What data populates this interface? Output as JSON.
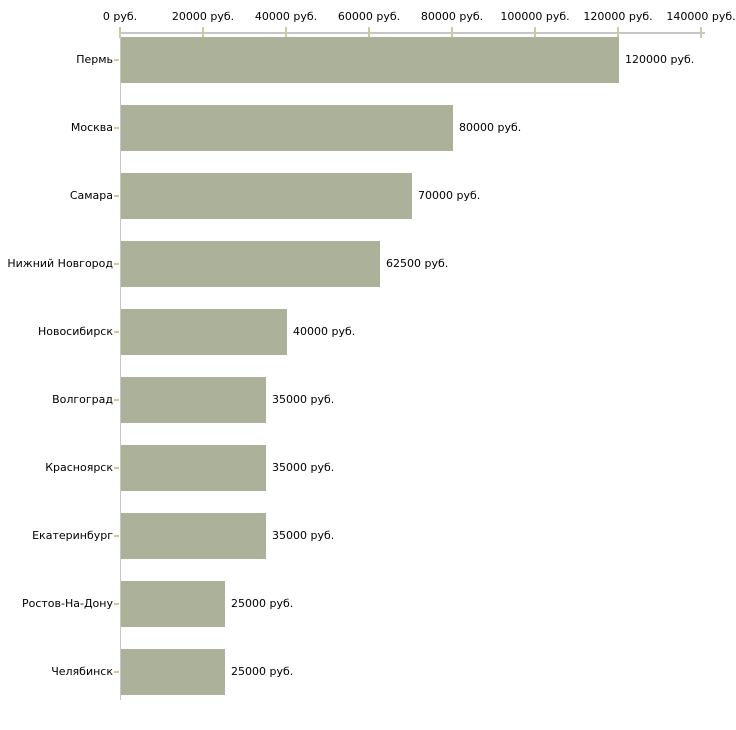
{
  "chart_data": {
    "type": "bar",
    "orientation": "horizontal",
    "title": "",
    "xlabel": "",
    "ylabel": "",
    "unit": "руб.",
    "xlim": [
      0,
      140000
    ],
    "x_tick_values": [
      0,
      20000,
      40000,
      60000,
      80000,
      100000,
      120000,
      140000
    ],
    "x_tick_labels": [
      "0 руб.",
      "20000 руб.",
      "40000 руб.",
      "60000 руб.",
      "80000 руб.",
      "100000 руб.",
      "120000 руб.",
      "140000 руб."
    ],
    "categories": [
      "Пермь",
      "Москва",
      "Самара",
      "Нижний Новгород",
      "Новосибирск",
      "Волгоград",
      "Красноярск",
      "Екатеринбург",
      "Ростов-На-Дону",
      "Челябинск"
    ],
    "values": [
      120000,
      80000,
      70000,
      62500,
      40000,
      35000,
      35000,
      35000,
      25000,
      25000
    ],
    "value_labels": [
      "120000 руб.",
      "80000 руб.",
      "70000 руб.",
      "62500 руб.",
      "40000 руб.",
      "35000 руб.",
      "35000 руб.",
      "35000 руб.",
      "25000 руб.",
      "25000 руб."
    ],
    "legend": null,
    "grid": false,
    "colors": {
      "bar_fill": "#acb299",
      "axis_line": "#c6c6c6",
      "tick_mark": "#cccc99",
      "text": "#000000",
      "background": "#ffffff"
    }
  }
}
